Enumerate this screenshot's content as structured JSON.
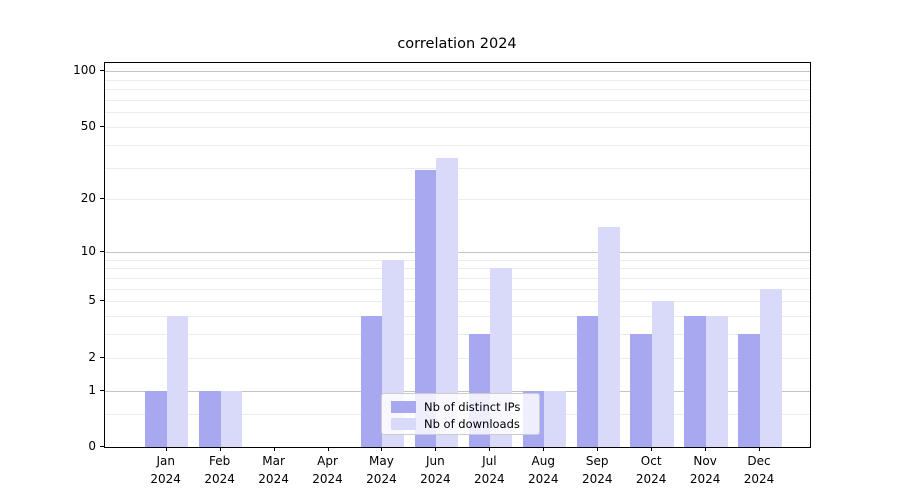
{
  "chart_data": {
    "type": "bar",
    "title": "correlation 2024",
    "categories": [
      "Jan 2024",
      "Feb 2024",
      "Mar 2024",
      "Apr 2024",
      "May 2024",
      "Jun 2024",
      "Jul 2024",
      "Aug 2024",
      "Sep 2024",
      "Oct 2024",
      "Nov 2024",
      "Dec 2024"
    ],
    "series": [
      {
        "name": "Nb of distinct IPs",
        "color": "#a8a8f1",
        "values": [
          1,
          1,
          0,
          0,
          4,
          29,
          3,
          1,
          4,
          3,
          4,
          3
        ]
      },
      {
        "name": "Nb of downloads",
        "color": "#d9d9f9",
        "values": [
          4,
          1,
          0,
          0,
          9,
          34,
          8,
          1,
          14,
          5,
          4,
          6
        ]
      }
    ],
    "y_ticks": [
      0,
      1,
      2,
      5,
      10,
      20,
      50,
      100
    ],
    "y_scale": "log1p",
    "ylim": [
      0,
      110
    ],
    "xlabel": "",
    "ylabel": "",
    "grid": true,
    "legend_position": "lower-center"
  }
}
